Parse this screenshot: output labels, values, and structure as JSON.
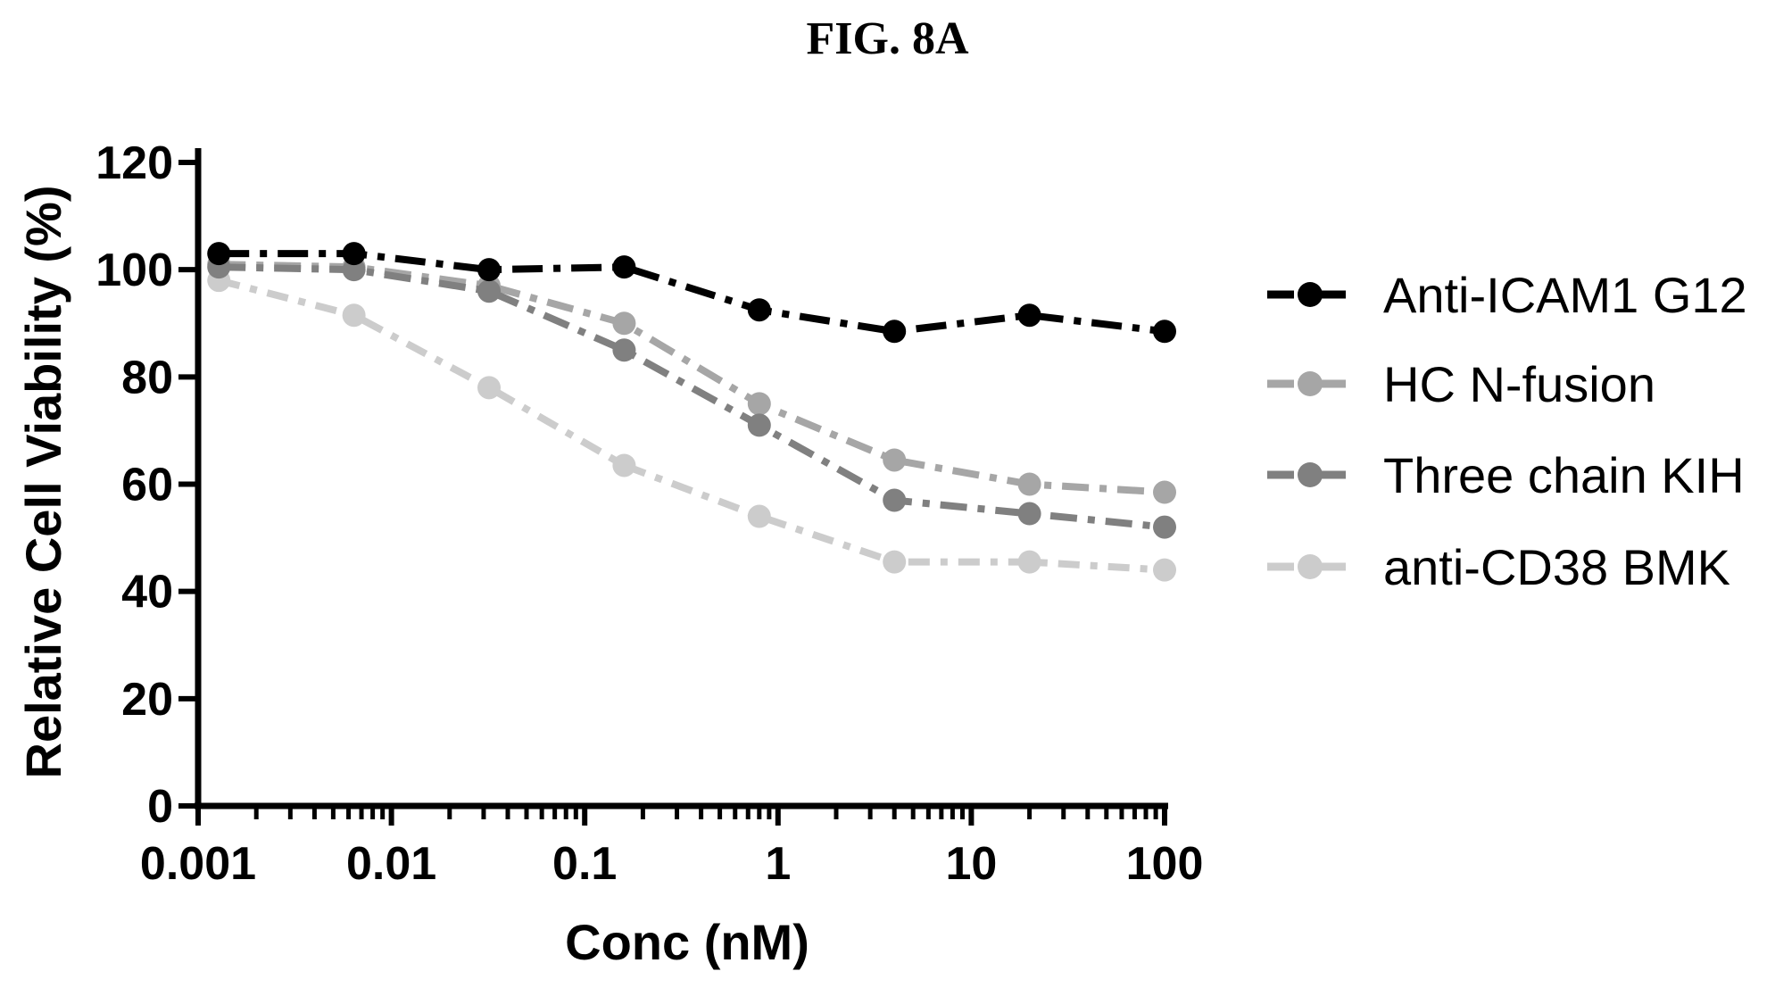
{
  "figure_title": "FIG. 8A",
  "chart_data": {
    "type": "line",
    "xlabel": "Conc (nM)",
    "ylabel": "Relative Cell Viability (%)",
    "xscale": "log",
    "xlim": [
      0.001,
      100
    ],
    "ylim": [
      0,
      120
    ],
    "x_ticks": [
      "0.001",
      "0.01",
      "0.1",
      "1",
      "10",
      "100"
    ],
    "y_ticks": [
      "0",
      "20",
      "40",
      "60",
      "80",
      "100",
      "120"
    ],
    "grid": false,
    "legend_position": "right",
    "x": [
      0.00128,
      0.0064,
      0.032,
      0.16,
      0.8,
      4,
      20,
      100
    ],
    "series": [
      {
        "name": "Anti-ICAM1 G12",
        "color": "#000000",
        "values": [
          103,
          103,
          100,
          100.5,
          92.5,
          88.5,
          91.5,
          88.5
        ]
      },
      {
        "name": "HC N-fusion",
        "color": "#a6a6a6",
        "values": [
          101,
          100.5,
          97,
          90,
          75,
          64.5,
          60,
          58.5
        ]
      },
      {
        "name": "Three chain KIH",
        "color": "#808080",
        "values": [
          100.5,
          100,
          96,
          85,
          71,
          57,
          54.5,
          52
        ]
      },
      {
        "name": "anti-CD38 BMK",
        "color": "#cccccc",
        "values": [
          98,
          91.5,
          78,
          63.5,
          54,
          45.5,
          45.5,
          44
        ]
      }
    ]
  }
}
